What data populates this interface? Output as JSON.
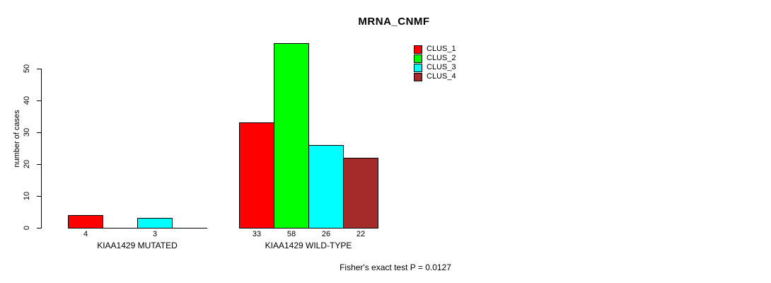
{
  "title": "MRNA_CNMF",
  "footer": "Fisher's exact test P = 0.0127",
  "chart_data": {
    "type": "bar",
    "title": "MRNA_CNMF",
    "xlabel": "",
    "ylabel": "number of cases",
    "ylim": [
      0,
      58
    ],
    "yticks": [
      0,
      10,
      20,
      30,
      40,
      50
    ],
    "grid": false,
    "legend_position": "top-right-inside",
    "series": [
      {
        "name": "CLUS_1",
        "color": "#FF0000"
      },
      {
        "name": "CLUS_2",
        "color": "#00FF00"
      },
      {
        "name": "CLUS_3",
        "color": "#00FFFF"
      },
      {
        "name": "CLUS_4",
        "color": "#A52A2A"
      }
    ],
    "categories": [
      "KIAA1429 MUTATED",
      "KIAA1429 WILD-TYPE"
    ],
    "groups": [
      {
        "label": "KIAA1429 MUTATED",
        "values": [
          4,
          0,
          3,
          0
        ]
      },
      {
        "label": "KIAA1429 WILD-TYPE",
        "values": [
          33,
          58,
          26,
          22
        ]
      }
    ],
    "bar_value_labels": [
      [
        "4",
        "",
        "3",
        ""
      ],
      [
        "33",
        "58",
        "26",
        "22"
      ]
    ],
    "annotation": "Fisher's exact test P = 0.0127"
  }
}
